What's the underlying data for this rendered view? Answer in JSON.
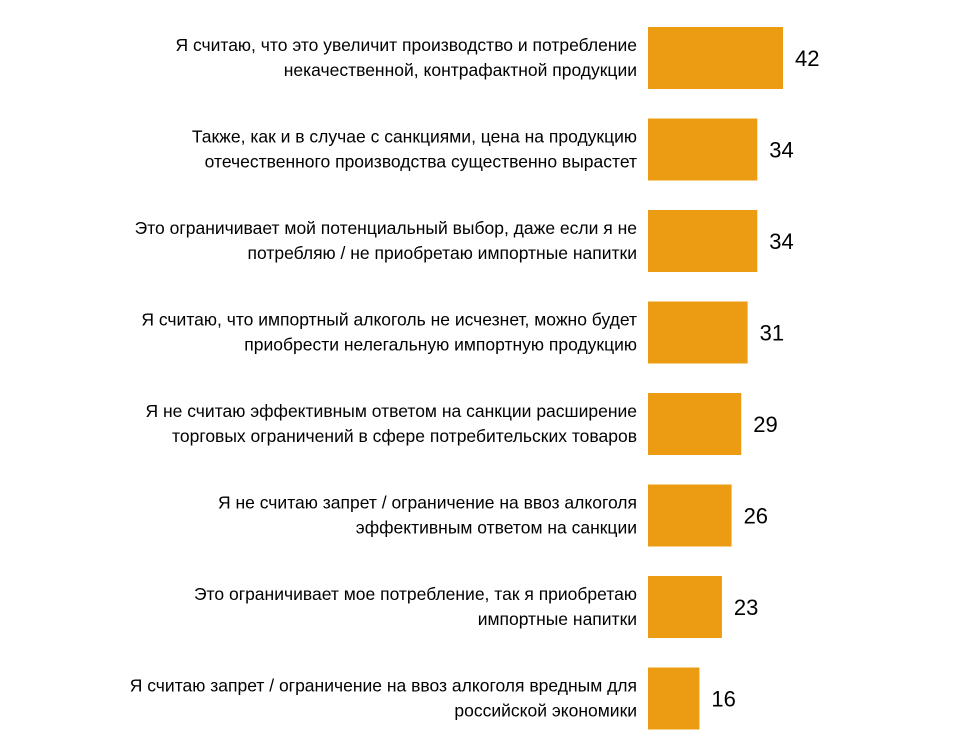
{
  "chart_data": {
    "type": "bar",
    "orientation": "horizontal",
    "color": "#EB9C12",
    "xlim": [
      0,
      42
    ],
    "grid": false,
    "categories": [
      [
        "Я считаю, что это увеличит производство и потребление",
        "некачественной, контрафактной продукции"
      ],
      [
        "Также, как и в случае с санкциями, цена на продукцию",
        "отечественного производства существенно вырастет"
      ],
      [
        "Это ограничивает мой потенциальный выбор, даже если я не",
        "потребляю / не приобретаю импортные напитки"
      ],
      [
        "Я считаю, что импортный алкоголь не исчезнет, можно будет",
        "приобрести нелегальную импортную продукцию"
      ],
      [
        "Я не считаю эффективным ответом на санкции расширение",
        "торговых ограничений в сфере потребительских товаров"
      ],
      [
        "Я не считаю запрет / ограничение на ввоз алкоголя",
        "эффективным ответом на санкции"
      ],
      [
        "Это ограничивает мое потребление, так я приобретаю",
        "импортные напитки"
      ],
      [
        "Я считаю запрет / ограничение на ввоз алкоголя вредным для",
        "российской экономики"
      ]
    ],
    "values": [
      42,
      34,
      34,
      31,
      29,
      26,
      23,
      16
    ]
  }
}
